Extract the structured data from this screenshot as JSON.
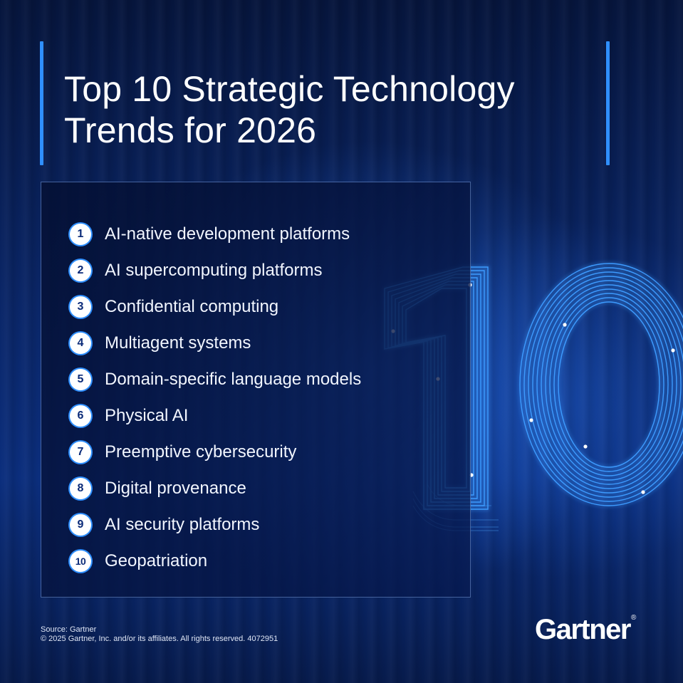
{
  "title": {
    "line1": "Top 10 Strategic Technology",
    "line2": "Trends for 2026"
  },
  "trends": [
    {
      "number": "1",
      "label": "AI-native development platforms"
    },
    {
      "number": "2",
      "label": "AI supercomputing platforms"
    },
    {
      "number": "3",
      "label": "Confidential computing"
    },
    {
      "number": "4",
      "label": "Multiagent systems"
    },
    {
      "number": "5",
      "label": "Domain-specific language models"
    },
    {
      "number": "6",
      "label": "Physical AI"
    },
    {
      "number": "7",
      "label": "Preemptive cybersecurity"
    },
    {
      "number": "8",
      "label": "Digital provenance"
    },
    {
      "number": "9",
      "label": "AI security platforms"
    },
    {
      "number": "10",
      "label": "Geopatriation"
    }
  ],
  "footer": {
    "source": "Source: Gartner",
    "copyright": "© 2025 Gartner, Inc. and/or its affiliates. All rights reserved. 4072951"
  },
  "logo": {
    "text": "Gartner",
    "mark": "®"
  },
  "colors": {
    "background": "#0a2668",
    "accent": "#2f8fff",
    "text": "#ffffff",
    "number_circle": "#ffffff",
    "number_text": "#0a2a78"
  }
}
